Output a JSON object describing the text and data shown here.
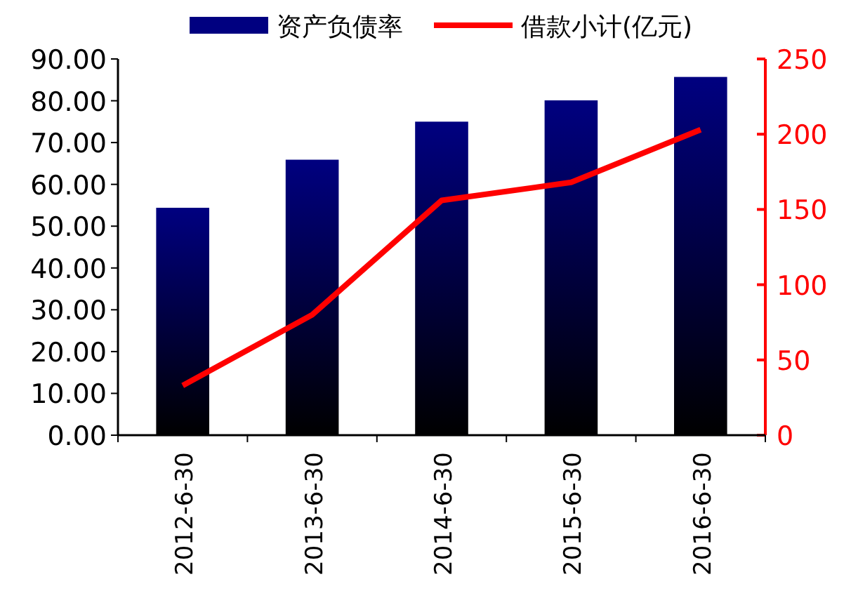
{
  "chart_data": {
    "type": "bar",
    "categories": [
      "2012-6-30",
      "2013-6-30",
      "2014-6-30",
      "2015-6-30",
      "2016-6-30"
    ],
    "series": [
      {
        "name": "资产负债率",
        "color": "#000080",
        "values": [
          54.4,
          65.9,
          75.0,
          80.1,
          85.7
        ]
      },
      {
        "name": "借款小计(亿元)",
        "type": "line",
        "axis": "y2",
        "color": "#ff0000",
        "values": [
          33,
          80,
          156,
          168,
          203
        ]
      }
    ],
    "ylim": [
      0,
      90
    ],
    "yticks": [
      {
        "value": 0,
        "label": "0.00"
      },
      {
        "value": 10,
        "label": "10.00"
      },
      {
        "value": 20,
        "label": "20.00"
      },
      {
        "value": 30,
        "label": "30.00"
      },
      {
        "value": 40,
        "label": "40.00"
      },
      {
        "value": 50,
        "label": "50.00"
      },
      {
        "value": 60,
        "label": "60.00"
      },
      {
        "value": 70,
        "label": "70.00"
      },
      {
        "value": 80,
        "label": "80.00"
      },
      {
        "value": 90,
        "label": "90.00"
      }
    ],
    "y2lim": [
      0,
      250
    ],
    "y2ticks": [
      0,
      50,
      100,
      150,
      200,
      250
    ],
    "legend": "top",
    "grid": false
  }
}
